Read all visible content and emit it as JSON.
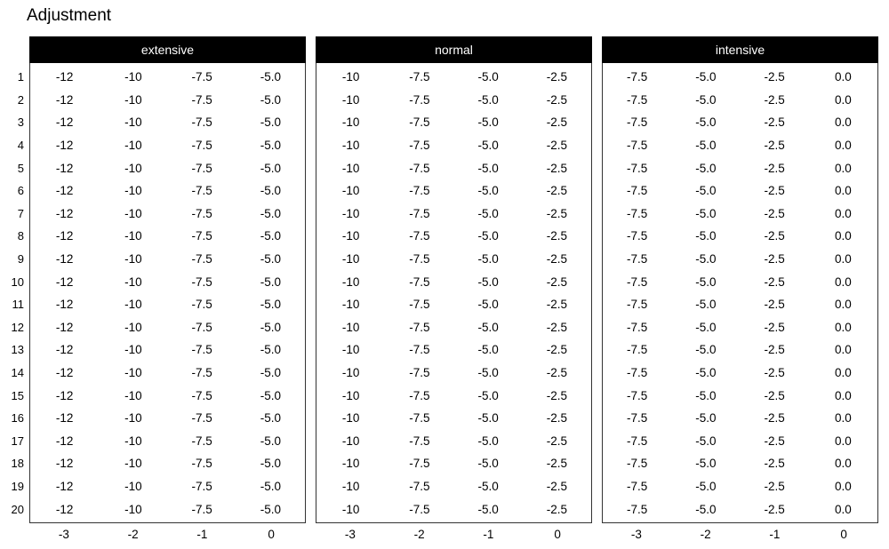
{
  "title": "Adjustment",
  "colors": {
    "background": "#ffffff",
    "header_bg": "#000000",
    "header_text": "#ffffff",
    "text": "#000000",
    "border": "#333333"
  },
  "rows_per_panel": 20,
  "row_labels": [
    "1",
    "2",
    "3",
    "4",
    "5",
    "6",
    "7",
    "8",
    "9",
    "10",
    "11",
    "12",
    "13",
    "14",
    "15",
    "16",
    "17",
    "18",
    "19",
    "20"
  ],
  "panels": [
    {
      "name": "extensive",
      "header": "extensive",
      "values": [
        "-12",
        "-10",
        "-7.5",
        "-5.0"
      ],
      "x_labels": [
        "-3",
        "-2",
        "-1",
        "0"
      ]
    },
    {
      "name": "normal",
      "header": "normal",
      "values": [
        "-10",
        "-7.5",
        "-5.0",
        "-2.5"
      ],
      "x_labels": [
        "-3",
        "-2",
        "-1",
        "0"
      ]
    },
    {
      "name": "intensive",
      "header": "intensive",
      "values": [
        "-7.5",
        "-5.0",
        "-2.5",
        "0.0"
      ],
      "x_labels": [
        "-3",
        "-2",
        "-1",
        "0"
      ]
    }
  ],
  "chart_data": [
    {
      "type": "table",
      "title": "extensive",
      "figure_title": "Adjustment",
      "x": [
        -3,
        -2,
        -1,
        0
      ],
      "x_tick_labels": [
        "-3",
        "-2",
        "-1",
        "0"
      ],
      "row_tick_labels": [
        1,
        2,
        3,
        4,
        5,
        6,
        7,
        8,
        9,
        10,
        11,
        12,
        13,
        14,
        15,
        16,
        17,
        18,
        19,
        20
      ],
      "n_rows": 20,
      "values_per_row": [
        -12,
        -10,
        -7.5,
        -5.0
      ],
      "all_rows_identical": true,
      "legend_position": "none",
      "grid": false
    },
    {
      "type": "table",
      "title": "normal",
      "figure_title": "Adjustment",
      "x": [
        -3,
        -2,
        -1,
        0
      ],
      "x_tick_labels": [
        "-3",
        "-2",
        "-1",
        "0"
      ],
      "row_tick_labels": [
        1,
        2,
        3,
        4,
        5,
        6,
        7,
        8,
        9,
        10,
        11,
        12,
        13,
        14,
        15,
        16,
        17,
        18,
        19,
        20
      ],
      "n_rows": 20,
      "values_per_row": [
        -10,
        -7.5,
        -5.0,
        -2.5
      ],
      "all_rows_identical": true,
      "legend_position": "none",
      "grid": false
    },
    {
      "type": "table",
      "title": "intensive",
      "figure_title": "Adjustment",
      "x": [
        -3,
        -2,
        -1,
        0
      ],
      "x_tick_labels": [
        "-3",
        "-2",
        "-1",
        "0"
      ],
      "row_tick_labels": [
        1,
        2,
        3,
        4,
        5,
        6,
        7,
        8,
        9,
        10,
        11,
        12,
        13,
        14,
        15,
        16,
        17,
        18,
        19,
        20
      ],
      "n_rows": 20,
      "values_per_row": [
        -7.5,
        -5.0,
        -2.5,
        0.0
      ],
      "all_rows_identical": true,
      "legend_position": "none",
      "grid": false
    }
  ]
}
